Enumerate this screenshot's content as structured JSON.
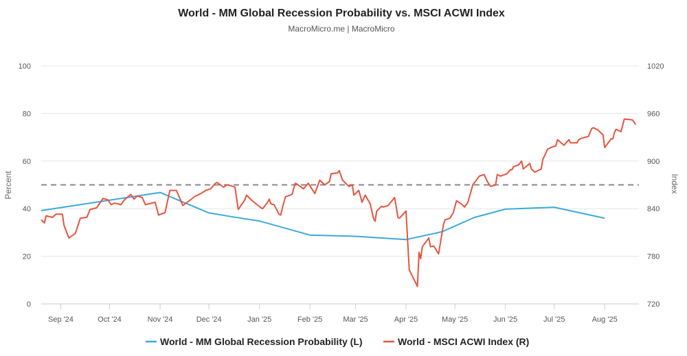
{
  "chart_data": {
    "type": "line",
    "title": "World - MM Global Recession Probability vs. MSCI ACWI Index",
    "subtitle": "MacroMicro.me | MacroMicro",
    "xrange": [
      "2024-08-20",
      "2025-08-22"
    ],
    "x_ticks": [
      {
        "date": "2024-09-01",
        "label": "Sep '24"
      },
      {
        "date": "2024-10-01",
        "label": "Oct '24"
      },
      {
        "date": "2024-11-01",
        "label": "Nov '24"
      },
      {
        "date": "2024-12-01",
        "label": "Dec '24"
      },
      {
        "date": "2025-01-01",
        "label": "Jan '25"
      },
      {
        "date": "2025-02-01",
        "label": "Feb '25"
      },
      {
        "date": "2025-03-01",
        "label": "Mar '25"
      },
      {
        "date": "2025-04-01",
        "label": "Apr '25"
      },
      {
        "date": "2025-05-01",
        "label": "May '25"
      },
      {
        "date": "2025-06-01",
        "label": "Jun '25"
      },
      {
        "date": "2025-07-01",
        "label": "Jul '25"
      },
      {
        "date": "2025-08-01",
        "label": "Aug '25"
      }
    ],
    "y_left": {
      "label": "Percent",
      "range": [
        0,
        100
      ],
      "ticks": [
        "0",
        "20",
        "40",
        "60",
        "80",
        "100"
      ]
    },
    "y_right": {
      "label": "Index",
      "range": [
        720,
        1020
      ],
      "ticks": [
        "720",
        "780",
        "840",
        "900",
        "960",
        "1020"
      ]
    },
    "grid": true,
    "threshold_left": 50,
    "legend_position": "bottom",
    "series": [
      {
        "name": "World - MM Global Recession Probability (L)",
        "axis": "left",
        "color": "#3aa9dc",
        "points": [
          [
            "2024-08-20",
            39.2
          ],
          [
            "2024-11-01",
            46.8
          ],
          [
            "2024-12-01",
            38.2
          ],
          [
            "2024-12-16",
            36.5
          ],
          [
            "2025-01-01",
            34.8
          ],
          [
            "2025-02-01",
            28.9
          ],
          [
            "2025-03-01",
            28.4
          ],
          [
            "2025-04-01",
            27.0
          ],
          [
            "2025-04-23",
            30.3
          ],
          [
            "2025-05-13",
            36.3
          ],
          [
            "2025-06-01",
            39.8
          ],
          [
            "2025-07-01",
            40.6
          ],
          [
            "2025-08-01",
            36.0
          ]
        ]
      },
      {
        "name": "World - MSCI ACWI Index (R)",
        "axis": "right",
        "color": "#e8523c",
        "points": [
          [
            "2024-08-20",
            826
          ],
          [
            "2024-08-22",
            822
          ],
          [
            "2024-08-23",
            831
          ],
          [
            "2024-08-27",
            829
          ],
          [
            "2024-08-29",
            833
          ],
          [
            "2024-09-02",
            833
          ],
          [
            "2024-09-03",
            819
          ],
          [
            "2024-09-06",
            803
          ],
          [
            "2024-09-10",
            809
          ],
          [
            "2024-09-13",
            828
          ],
          [
            "2024-09-17",
            829
          ],
          [
            "2024-09-19",
            839
          ],
          [
            "2024-09-23",
            841
          ],
          [
            "2024-09-27",
            853
          ],
          [
            "2024-09-30",
            851
          ],
          [
            "2024-10-02",
            845
          ],
          [
            "2024-10-04",
            847
          ],
          [
            "2024-10-08",
            845
          ],
          [
            "2024-10-10",
            851
          ],
          [
            "2024-10-14",
            858
          ],
          [
            "2024-10-16",
            852
          ],
          [
            "2024-10-18",
            856
          ],
          [
            "2024-10-21",
            854
          ],
          [
            "2024-10-23",
            845
          ],
          [
            "2024-10-29",
            848
          ],
          [
            "2024-10-31",
            832
          ],
          [
            "2024-11-04",
            835
          ],
          [
            "2024-11-07",
            863
          ],
          [
            "2024-11-11",
            863
          ],
          [
            "2024-11-15",
            844
          ],
          [
            "2024-11-19",
            850
          ],
          [
            "2024-11-22",
            855
          ],
          [
            "2024-11-26",
            859
          ],
          [
            "2024-11-29",
            863
          ],
          [
            "2024-12-02",
            865
          ],
          [
            "2024-12-05",
            872
          ],
          [
            "2024-12-06",
            873
          ],
          [
            "2024-12-10",
            867
          ],
          [
            "2024-12-12",
            870
          ],
          [
            "2024-12-16",
            868
          ],
          [
            "2024-12-17",
            867
          ],
          [
            "2024-12-19",
            839
          ],
          [
            "2024-12-23",
            851
          ],
          [
            "2024-12-24",
            857
          ],
          [
            "2024-12-27",
            851
          ],
          [
            "2025-01-02",
            841
          ],
          [
            "2025-01-03",
            840
          ],
          [
            "2025-01-06",
            848
          ],
          [
            "2025-01-07",
            852
          ],
          [
            "2025-01-08",
            846
          ],
          [
            "2025-01-10",
            845
          ],
          [
            "2025-01-13",
            833
          ],
          [
            "2025-01-14",
            832
          ],
          [
            "2025-01-16",
            848
          ],
          [
            "2025-01-17",
            855
          ],
          [
            "2025-01-21",
            858
          ],
          [
            "2025-01-23",
            872
          ],
          [
            "2025-01-24",
            871
          ],
          [
            "2025-01-28",
            865
          ],
          [
            "2025-01-31",
            872
          ],
          [
            "2025-02-04",
            859
          ],
          [
            "2025-02-07",
            876
          ],
          [
            "2025-02-10",
            870
          ],
          [
            "2025-02-13",
            874
          ],
          [
            "2025-02-14",
            884
          ],
          [
            "2025-02-18",
            885
          ],
          [
            "2025-02-19",
            888
          ],
          [
            "2025-02-21",
            876
          ],
          [
            "2025-02-25",
            868
          ],
          [
            "2025-02-27",
            870
          ],
          [
            "2025-02-28",
            857
          ],
          [
            "2025-03-03",
            863
          ],
          [
            "2025-03-05",
            848
          ],
          [
            "2025-03-07",
            857
          ],
          [
            "2025-03-10",
            846
          ],
          [
            "2025-03-12",
            828
          ],
          [
            "2025-03-13",
            824
          ],
          [
            "2025-03-14",
            837
          ],
          [
            "2025-03-17",
            843
          ],
          [
            "2025-03-18",
            842
          ],
          [
            "2025-03-21",
            844
          ],
          [
            "2025-03-25",
            854
          ],
          [
            "2025-03-26",
            842
          ],
          [
            "2025-03-27",
            829
          ],
          [
            "2025-03-28",
            828
          ],
          [
            "2025-04-01",
            837
          ],
          [
            "2025-04-03",
            763
          ],
          [
            "2025-04-08",
            742
          ],
          [
            "2025-04-09",
            785
          ],
          [
            "2025-04-10",
            777
          ],
          [
            "2025-04-11",
            792
          ],
          [
            "2025-04-15",
            803
          ],
          [
            "2025-04-16",
            792
          ],
          [
            "2025-04-18",
            793
          ],
          [
            "2025-04-21",
            783
          ],
          [
            "2025-04-24",
            820
          ],
          [
            "2025-04-25",
            826
          ],
          [
            "2025-04-28",
            828
          ],
          [
            "2025-04-30",
            835
          ],
          [
            "2025-05-02",
            850
          ],
          [
            "2025-05-05",
            846
          ],
          [
            "2025-05-07",
            842
          ],
          [
            "2025-05-09",
            848
          ],
          [
            "2025-05-12",
            870
          ],
          [
            "2025-05-16",
            881
          ],
          [
            "2025-05-19",
            883
          ],
          [
            "2025-05-21",
            874
          ],
          [
            "2025-05-23",
            868
          ],
          [
            "2025-05-26",
            870
          ],
          [
            "2025-05-27",
            883
          ],
          [
            "2025-05-29",
            881
          ],
          [
            "2025-06-02",
            884
          ],
          [
            "2025-06-04",
            889
          ],
          [
            "2025-06-05",
            889
          ],
          [
            "2025-06-06",
            893
          ],
          [
            "2025-06-09",
            895
          ],
          [
            "2025-06-11",
            900
          ],
          [
            "2025-06-12",
            890
          ],
          [
            "2025-06-16",
            897
          ],
          [
            "2025-06-17",
            890
          ],
          [
            "2025-06-19",
            886
          ],
          [
            "2025-06-23",
            890
          ],
          [
            "2025-06-24",
            902
          ],
          [
            "2025-06-27",
            915
          ],
          [
            "2025-06-30",
            918
          ],
          [
            "2025-07-02",
            919
          ],
          [
            "2025-07-03",
            927
          ],
          [
            "2025-07-07",
            920
          ],
          [
            "2025-07-10",
            927
          ],
          [
            "2025-07-11",
            923
          ],
          [
            "2025-07-15",
            923
          ],
          [
            "2025-07-16",
            927
          ],
          [
            "2025-07-18",
            929
          ],
          [
            "2025-07-22",
            931
          ],
          [
            "2025-07-24",
            941
          ],
          [
            "2025-07-25",
            942
          ],
          [
            "2025-07-28",
            939
          ],
          [
            "2025-07-31",
            933
          ],
          [
            "2025-08-01",
            917
          ],
          [
            "2025-08-05",
            928
          ],
          [
            "2025-08-06",
            928
          ],
          [
            "2025-08-07",
            936
          ],
          [
            "2025-08-08",
            940
          ],
          [
            "2025-08-11",
            937
          ],
          [
            "2025-08-13",
            953
          ],
          [
            "2025-08-18",
            952
          ],
          [
            "2025-08-20",
            946
          ]
        ]
      }
    ]
  }
}
